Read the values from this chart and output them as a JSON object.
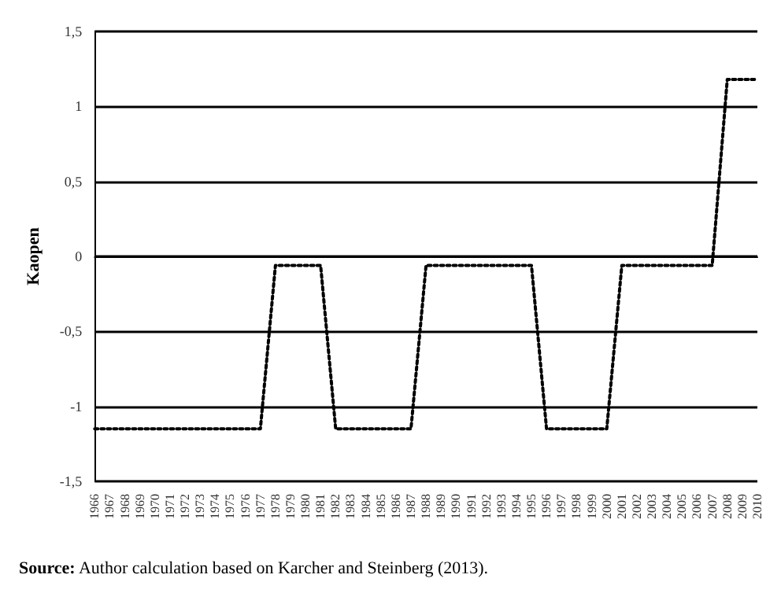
{
  "chart_data": {
    "type": "line",
    "ylabel": "Kaopen",
    "categories": [
      "1966",
      "1967",
      "1968",
      "1969",
      "1970",
      "1971",
      "1972",
      "1973",
      "1974",
      "1975",
      "1976",
      "1977",
      "1978",
      "1979",
      "1980",
      "1981",
      "1982",
      "1983",
      "1984",
      "1985",
      "1986",
      "1987",
      "1988",
      "1989",
      "1990",
      "1991",
      "1992",
      "1993",
      "1994",
      "1995",
      "1996",
      "1997",
      "1998",
      "1999",
      "2000",
      "2001",
      "2002",
      "2003",
      "2004",
      "2005",
      "2006",
      "2007",
      "2008",
      "2009",
      "2010"
    ],
    "series": [
      {
        "color": "#000000",
        "values": [
          -1.15,
          -1.15,
          -1.15,
          -1.15,
          -1.15,
          -1.15,
          -1.15,
          -1.15,
          -1.15,
          -1.15,
          -1.15,
          -1.15,
          -0.06,
          -0.06,
          -0.06,
          -0.06,
          -1.15,
          -1.15,
          -1.15,
          -1.15,
          -1.15,
          -1.15,
          -0.06,
          -0.06,
          -0.06,
          -0.06,
          -0.06,
          -0.06,
          -0.06,
          -0.06,
          -1.15,
          -1.15,
          -1.15,
          -1.15,
          -1.15,
          -0.06,
          -0.06,
          -0.06,
          -0.06,
          -0.06,
          -0.06,
          -0.06,
          1.18,
          1.18,
          1.18
        ]
      }
    ],
    "ylim": [
      -1.5,
      1.5
    ],
    "yticks": [
      {
        "value": -1.5,
        "label": "-1,5"
      },
      -1,
      {
        "value": -0.5,
        "label": "-0,5"
      },
      0,
      {
        "value": 0.5,
        "label": "0,5"
      },
      1,
      {
        "value": 1.5,
        "label": "1,5"
      }
    ],
    "grid": "y",
    "marker": "none",
    "line_style": "dotted",
    "annotations": [
      "Source: Author calculation based on Karcher and Steinberg (2013)."
    ]
  }
}
